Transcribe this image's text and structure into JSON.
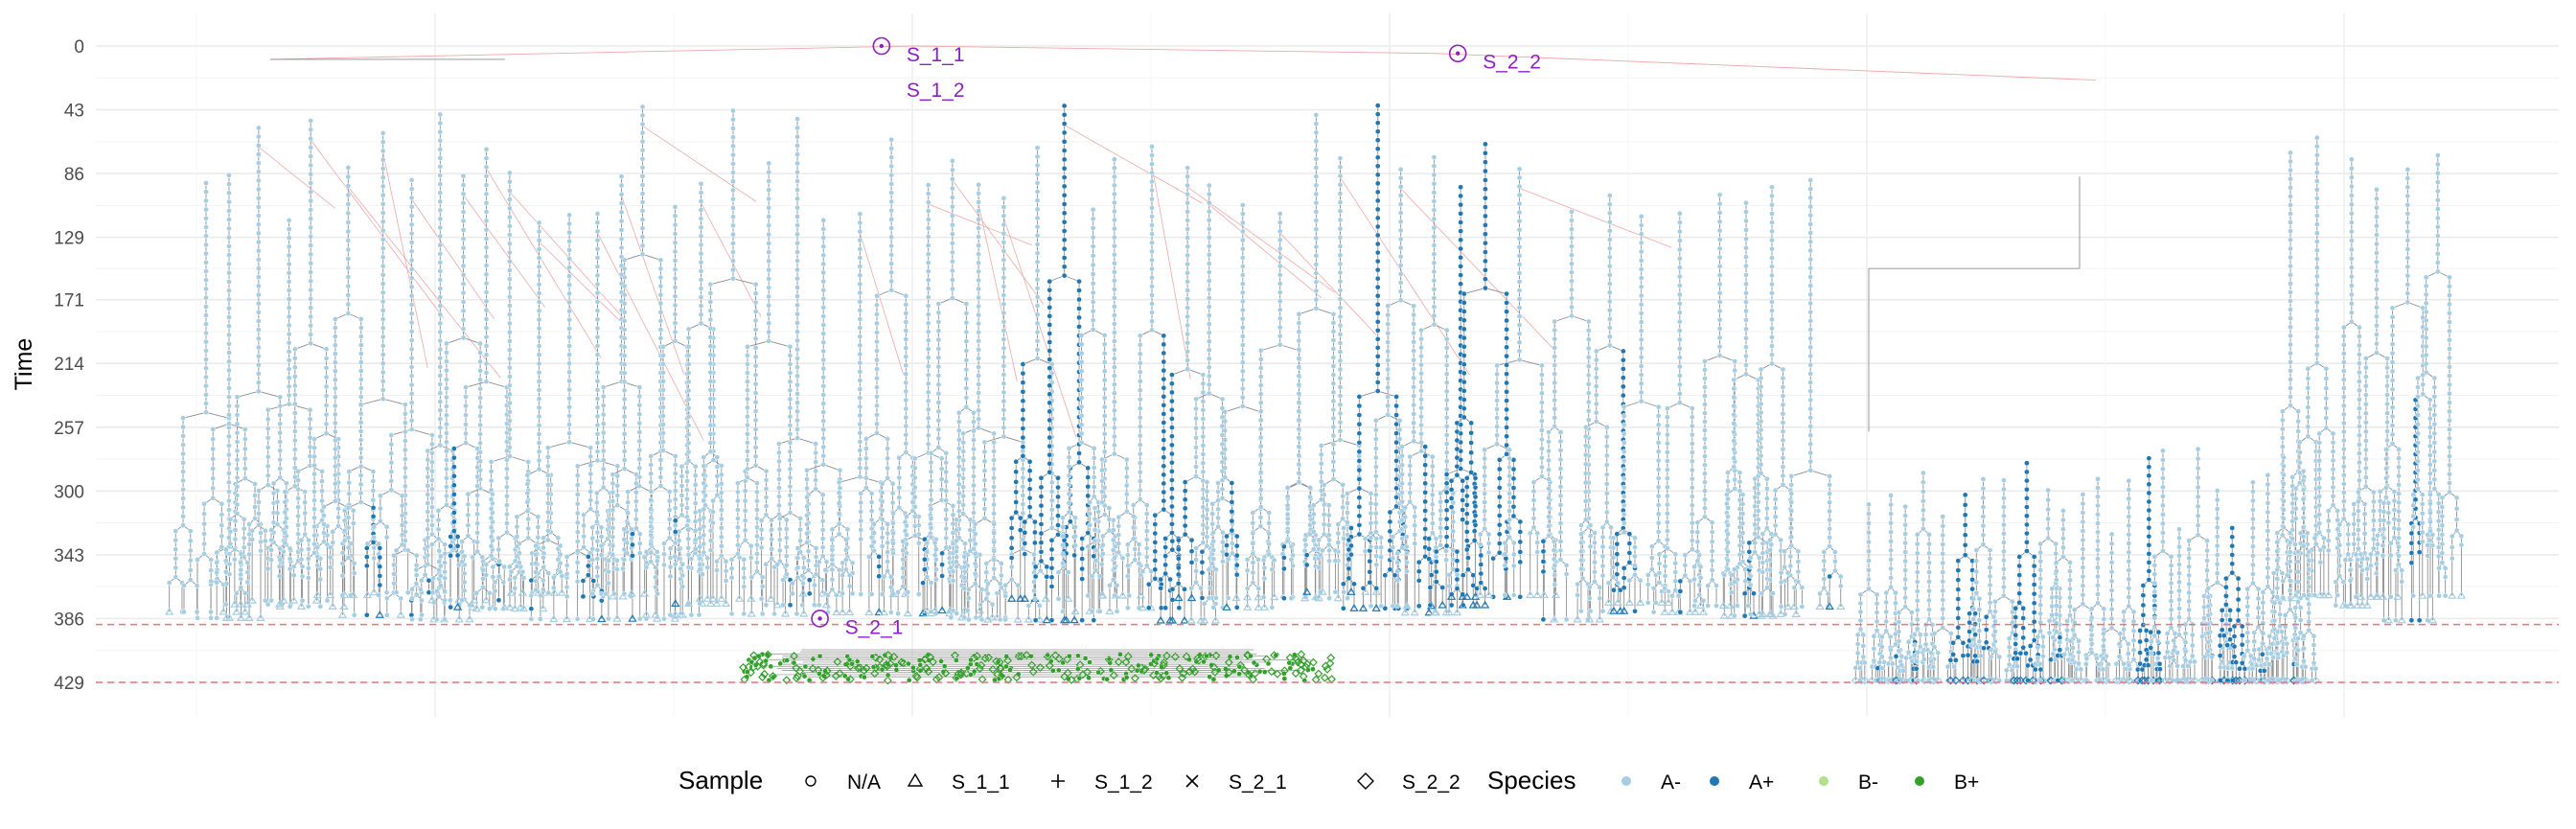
{
  "chart_data": {
    "type": "scatter",
    "subtype": "phylogenetic-tree",
    "title": "",
    "xlabel": "",
    "ylabel": "Time",
    "y_reversed": true,
    "ylim": [
      0,
      429
    ],
    "yticks": [
      0,
      43,
      86,
      129,
      171,
      214,
      257,
      300,
      343,
      386,
      429
    ],
    "grid": true,
    "legend_position": "bottom",
    "reference_lines": [
      {
        "y": 390,
        "style": "dashed",
        "color": "#e8747c"
      },
      {
        "y": 429,
        "style": "dashed",
        "color": "#e8747c"
      }
    ],
    "sample_legend": {
      "title": "Sample",
      "items": [
        {
          "label": "N/A",
          "shape": "circle"
        },
        {
          "label": "S_1_1",
          "shape": "triangle"
        },
        {
          "label": "S_1_2",
          "shape": "plus"
        },
        {
          "label": "S_2_1",
          "shape": "cross"
        },
        {
          "label": "S_2_2",
          "shape": "diamond"
        }
      ]
    },
    "species_legend": {
      "title": "Species",
      "items": [
        {
          "label": "A-",
          "color": "#a6cee3"
        },
        {
          "label": "A+",
          "color": "#1f78b4"
        },
        {
          "label": "B-",
          "color": "#b2df8a"
        },
        {
          "label": "B+",
          "color": "#33a02c"
        }
      ]
    },
    "annotations": [
      {
        "label": "S_1_1",
        "x": 0.319,
        "y": 0
      },
      {
        "label": "S_1_2",
        "x": 0.319,
        "y": 24
      },
      {
        "label": "S_2_2",
        "x": 0.553,
        "y": 5
      },
      {
        "label": "S_2_1",
        "x": 0.294,
        "y": 386
      }
    ],
    "edge_colors": {
      "vertical": "#8c8c8c",
      "transfer": "#f0a8a8"
    }
  }
}
